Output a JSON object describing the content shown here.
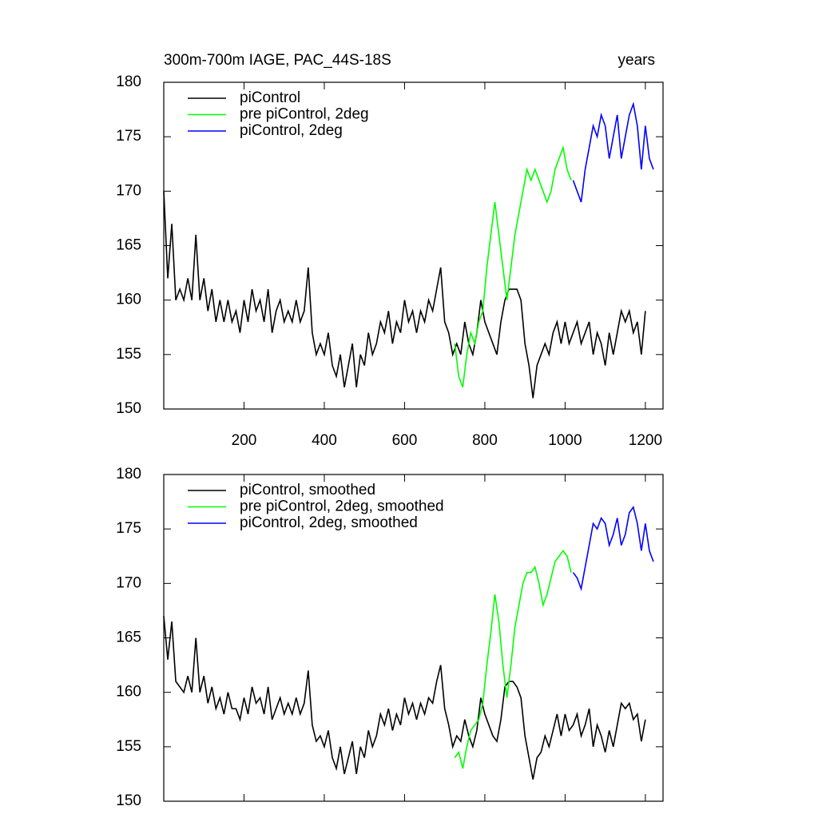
{
  "chart_data": [
    {
      "type": "line",
      "title": "300m-700m IAGE, PAC_44S-18S",
      "right_title": "years",
      "xlim": [
        0,
        1244
      ],
      "xticks": [
        200,
        400,
        600,
        800,
        1000,
        1200
      ],
      "show_xtick_labels": true,
      "ylim": [
        150,
        180
      ],
      "yticks": [
        150,
        155,
        160,
        165,
        170,
        175,
        180
      ],
      "series": [
        {
          "name": "piControl",
          "color": "#000000",
          "x": [
            0,
            10,
            20,
            30,
            40,
            50,
            60,
            70,
            80,
            90,
            100,
            110,
            120,
            130,
            140,
            150,
            160,
            170,
            180,
            190,
            200,
            210,
            220,
            230,
            240,
            250,
            260,
            270,
            280,
            290,
            300,
            310,
            320,
            330,
            340,
            350,
            360,
            370,
            380,
            390,
            400,
            410,
            420,
            430,
            440,
            450,
            460,
            470,
            480,
            490,
            500,
            510,
            520,
            530,
            540,
            550,
            560,
            570,
            580,
            590,
            600,
            610,
            620,
            630,
            640,
            650,
            660,
            670,
            680,
            690,
            700,
            710,
            720,
            730,
            740,
            750,
            760,
            770,
            780,
            790,
            800,
            810,
            820,
            830,
            840,
            850,
            860,
            870,
            880,
            890,
            900,
            910,
            920,
            930,
            940,
            950,
            960,
            970,
            980,
            990,
            1000,
            1010,
            1020,
            1030,
            1040,
            1050,
            1060,
            1070,
            1080,
            1090,
            1100,
            1110,
            1120,
            1130,
            1140,
            1150,
            1160,
            1170,
            1180,
            1190,
            1200
          ],
          "values": [
            170,
            162,
            167,
            160,
            161,
            160,
            162,
            160,
            166,
            160,
            162,
            159,
            161,
            158,
            160,
            158,
            160,
            158,
            159,
            157,
            160,
            158,
            161,
            159,
            160,
            158,
            161,
            157,
            159,
            160,
            158,
            159,
            158,
            160,
            158,
            159,
            163,
            157,
            155,
            156,
            155,
            157,
            154,
            153,
            155,
            152,
            154,
            156,
            152,
            155,
            154,
            157,
            155,
            156,
            158,
            157,
            159,
            156,
            158,
            157,
            160,
            158,
            159,
            157,
            159,
            158,
            160,
            159,
            161,
            163,
            158,
            157,
            155,
            156,
            155,
            158,
            156,
            155,
            157,
            160,
            158,
            157,
            156,
            155,
            158,
            160,
            161,
            161,
            161,
            160,
            156,
            154,
            151,
            154,
            155,
            156,
            155,
            157,
            158,
            156,
            158,
            156,
            157,
            158,
            156,
            157,
            158,
            155,
            157,
            156,
            154,
            157,
            155,
            157,
            159,
            158,
            159,
            157,
            158,
            155,
            159
          ]
        },
        {
          "name": "pre piControl, 2deg",
          "color": "#00ff00",
          "x": [
            725,
            735,
            745,
            755,
            765,
            775,
            785,
            795,
            805,
            815,
            825,
            835,
            845,
            855,
            865,
            875,
            885,
            895,
            905,
            915,
            925,
            935,
            945,
            955,
            965,
            975,
            985,
            995,
            1005,
            1015
          ],
          "values": [
            156,
            153,
            152,
            155,
            157,
            156,
            158,
            159,
            163,
            166,
            169,
            166,
            163,
            160,
            163,
            166,
            168,
            170,
            172,
            171,
            172,
            171,
            170,
            169,
            170,
            172,
            173,
            174,
            172,
            171
          ]
        },
        {
          "name": "piControl, 2deg",
          "color": "#0000ff",
          "x": [
            1020,
            1030,
            1040,
            1050,
            1060,
            1070,
            1080,
            1090,
            1100,
            1110,
            1120,
            1130,
            1140,
            1150,
            1160,
            1170,
            1180,
            1190,
            1200,
            1210,
            1220
          ],
          "values": [
            171,
            170,
            169,
            172,
            174,
            176,
            175,
            177,
            176,
            173,
            175,
            177,
            173,
            175,
            177,
            178,
            176,
            172,
            176,
            173,
            172
          ]
        }
      ]
    },
    {
      "type": "line",
      "xlim": [
        0,
        1244
      ],
      "xticks": [
        200,
        400,
        600,
        800,
        1000,
        1200
      ],
      "show_xtick_labels": false,
      "ylim": [
        150,
        180
      ],
      "yticks": [
        150,
        155,
        160,
        165,
        170,
        175,
        180
      ],
      "series": [
        {
          "name": "piControl, smoothed",
          "color": "#000000",
          "x": [
            0,
            10,
            20,
            30,
            40,
            50,
            60,
            70,
            80,
            90,
            100,
            110,
            120,
            130,
            140,
            150,
            160,
            170,
            180,
            190,
            200,
            210,
            220,
            230,
            240,
            250,
            260,
            270,
            280,
            290,
            300,
            310,
            320,
            330,
            340,
            350,
            360,
            370,
            380,
            390,
            400,
            410,
            420,
            430,
            440,
            450,
            460,
            470,
            480,
            490,
            500,
            510,
            520,
            530,
            540,
            550,
            560,
            570,
            580,
            590,
            600,
            610,
            620,
            630,
            640,
            650,
            660,
            670,
            680,
            690,
            700,
            710,
            720,
            730,
            740,
            750,
            760,
            770,
            780,
            790,
            800,
            810,
            820,
            830,
            840,
            850,
            860,
            870,
            880,
            890,
            900,
            910,
            920,
            930,
            940,
            950,
            960,
            970,
            980,
            990,
            1000,
            1010,
            1020,
            1030,
            1040,
            1050,
            1060,
            1070,
            1080,
            1090,
            1100,
            1110,
            1120,
            1130,
            1140,
            1150,
            1160,
            1170,
            1180,
            1190,
            1200
          ],
          "values": [
            167,
            163,
            166.5,
            161,
            160.5,
            160,
            161.5,
            160,
            165,
            160,
            161.5,
            159,
            160.5,
            158.5,
            159.5,
            158,
            160,
            158.5,
            158.5,
            157.5,
            159.5,
            158,
            160.5,
            159,
            159.5,
            158,
            160.5,
            157.5,
            158.5,
            159.5,
            158,
            159,
            158,
            159.5,
            158,
            159,
            162,
            157,
            155.5,
            156,
            155,
            156.5,
            154,
            153,
            155,
            152.5,
            154,
            155.5,
            152.5,
            155,
            154,
            156.5,
            155,
            156,
            158,
            157,
            158.5,
            156.5,
            158,
            157,
            159.5,
            158,
            159,
            157.5,
            159,
            158,
            159.5,
            159,
            161,
            162.5,
            158.5,
            157,
            155,
            156,
            155.5,
            157.5,
            156,
            155,
            156.5,
            159.5,
            158,
            157,
            156,
            155.5,
            157.5,
            160.5,
            161,
            161,
            160.5,
            159.5,
            156,
            154,
            152,
            154,
            154.5,
            156,
            155,
            156.5,
            158,
            156,
            158,
            156.5,
            157,
            158,
            156,
            157,
            158.5,
            155,
            157,
            156,
            154.5,
            156.5,
            155,
            157,
            159,
            158.5,
            159,
            157.5,
            158,
            155.5,
            157.5
          ]
        },
        {
          "name": "pre piControl, 2deg, smoothed",
          "color": "#00ff00",
          "x": [
            725,
            735,
            745,
            755,
            765,
            775,
            785,
            795,
            805,
            815,
            825,
            835,
            845,
            855,
            865,
            875,
            885,
            895,
            905,
            915,
            925,
            935,
            945,
            955,
            965,
            975,
            985,
            995,
            1005,
            1015
          ],
          "values": [
            154,
            154.5,
            153,
            155,
            156.5,
            157,
            157.5,
            159,
            162.5,
            165.5,
            169,
            166.5,
            162.5,
            159.5,
            162.5,
            166,
            168,
            170,
            171,
            171,
            171.5,
            170,
            168,
            169,
            170.5,
            172,
            172.5,
            173,
            172.5,
            171
          ]
        },
        {
          "name": "piControl, 2deg, smoothed",
          "color": "#0000ff",
          "x": [
            1020,
            1030,
            1040,
            1050,
            1060,
            1070,
            1080,
            1090,
            1100,
            1110,
            1120,
            1130,
            1140,
            1150,
            1160,
            1170,
            1180,
            1190,
            1200,
            1210,
            1220
          ],
          "values": [
            171,
            170.5,
            169.5,
            171.5,
            173.5,
            175.5,
            175,
            176,
            175.5,
            173.5,
            174.5,
            176,
            173.5,
            174.5,
            176.5,
            177,
            175.5,
            173,
            175.5,
            173,
            172
          ]
        }
      ]
    }
  ]
}
